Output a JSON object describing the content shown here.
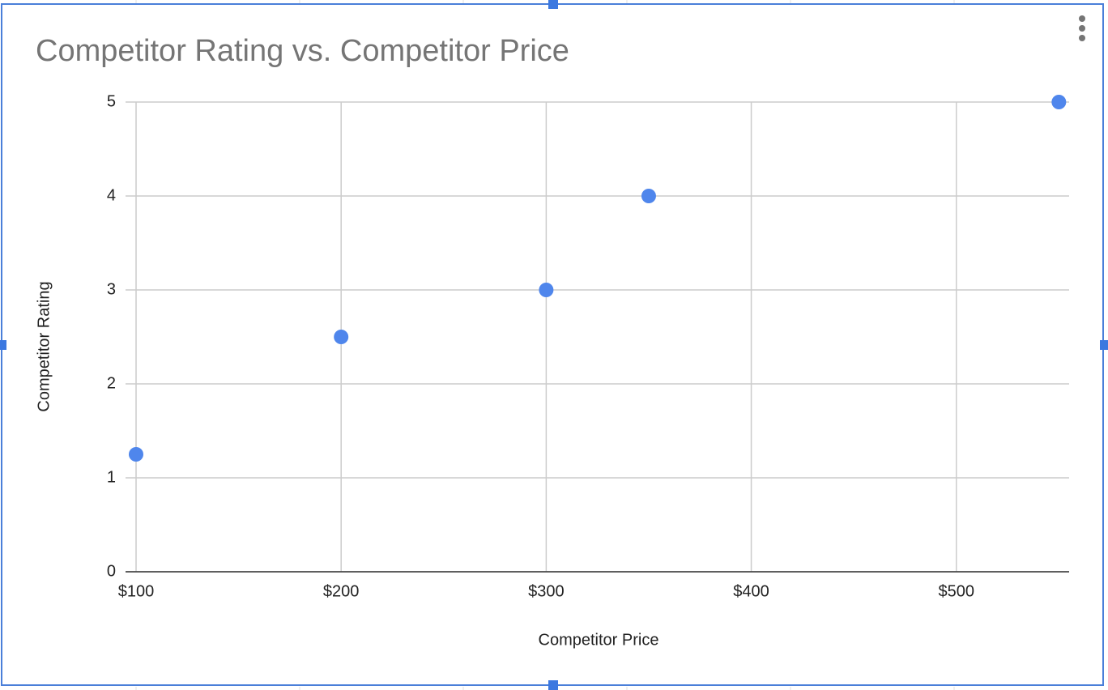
{
  "chart_data": {
    "type": "scatter",
    "title": "Competitor Rating vs. Competitor Price",
    "x_label": "Competitor Price",
    "y_label": "Competitor Rating",
    "x": [
      100,
      200,
      300,
      350,
      550
    ],
    "values": [
      1.25,
      2.5,
      3,
      4,
      5
    ],
    "color": "#4f86ec",
    "xlim": [
      100,
      555
    ],
    "ylim": [
      0,
      5
    ],
    "xticks": [
      {
        "value": 100,
        "label": "$100"
      },
      {
        "value": 200,
        "label": "$200"
      },
      {
        "value": 300,
        "label": "$300"
      },
      {
        "value": 400,
        "label": "$400"
      },
      {
        "value": 500,
        "label": "$500"
      }
    ],
    "yticks": [
      0,
      1,
      2,
      3,
      4,
      5
    ],
    "grid": true
  }
}
